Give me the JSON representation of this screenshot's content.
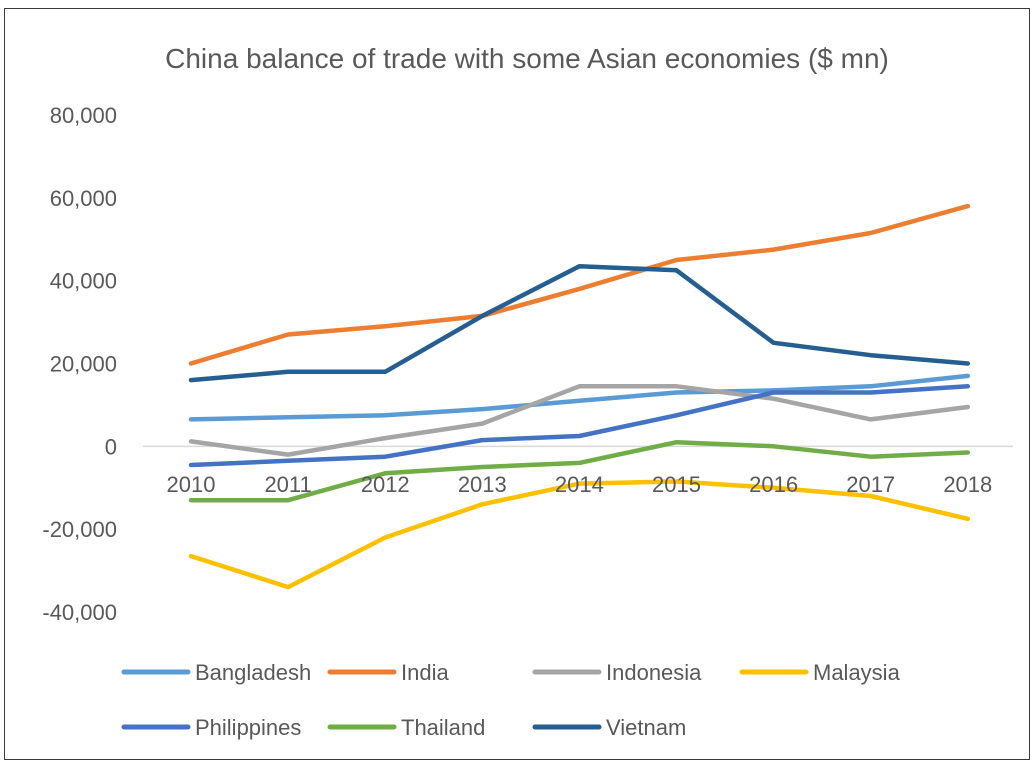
{
  "chart_data": {
    "type": "line",
    "title": "China balance of trade with some Asian economies ($ mn)",
    "xlabel": "",
    "ylabel": "",
    "x": [
      "2010",
      "2011",
      "2012",
      "2013",
      "2014",
      "2015",
      "2016",
      "2017",
      "2018"
    ],
    "ylim": [
      -40000,
      80000
    ],
    "yticks": [
      80000,
      60000,
      40000,
      20000,
      0,
      -20000,
      -40000
    ],
    "ytick_labels": [
      "80,000",
      "60,000",
      "40,000",
      "20,000",
      "0",
      "-20,000",
      "-40,000"
    ],
    "grid": false,
    "zero_line": true,
    "legend_position": "bottom",
    "series": [
      {
        "name": "Bangladesh",
        "color": "#5b9bd5",
        "values": [
          6500,
          7000,
          7500,
          9000,
          11000,
          13000,
          13500,
          14500,
          17000
        ]
      },
      {
        "name": "India",
        "color": "#ed7d31",
        "values": [
          20000,
          27000,
          29000,
          31500,
          38000,
          45000,
          47500,
          51500,
          58000
        ]
      },
      {
        "name": "Indonesia",
        "color": "#a5a5a5",
        "values": [
          1200,
          -2000,
          2000,
          5500,
          14500,
          14500,
          11500,
          6500,
          9500
        ]
      },
      {
        "name": "Malaysia",
        "color": "#ffc000",
        "values": [
          -26500,
          -34000,
          -22000,
          -14000,
          -9000,
          -8500,
          -10000,
          -12000,
          -17500
        ]
      },
      {
        "name": "Philippines",
        "color": "#4472c4",
        "values": [
          -4500,
          -3500,
          -2500,
          1500,
          2500,
          7500,
          13000,
          13000,
          14500
        ]
      },
      {
        "name": "Thailand",
        "color": "#70ad47",
        "values": [
          -13000,
          -13000,
          -6500,
          -5000,
          -4000,
          1000,
          0,
          -2500,
          -1500
        ]
      },
      {
        "name": "Vietnam",
        "color": "#255e91",
        "values": [
          16000,
          18000,
          18000,
          31500,
          43500,
          42500,
          25000,
          22000,
          20000
        ]
      }
    ]
  }
}
